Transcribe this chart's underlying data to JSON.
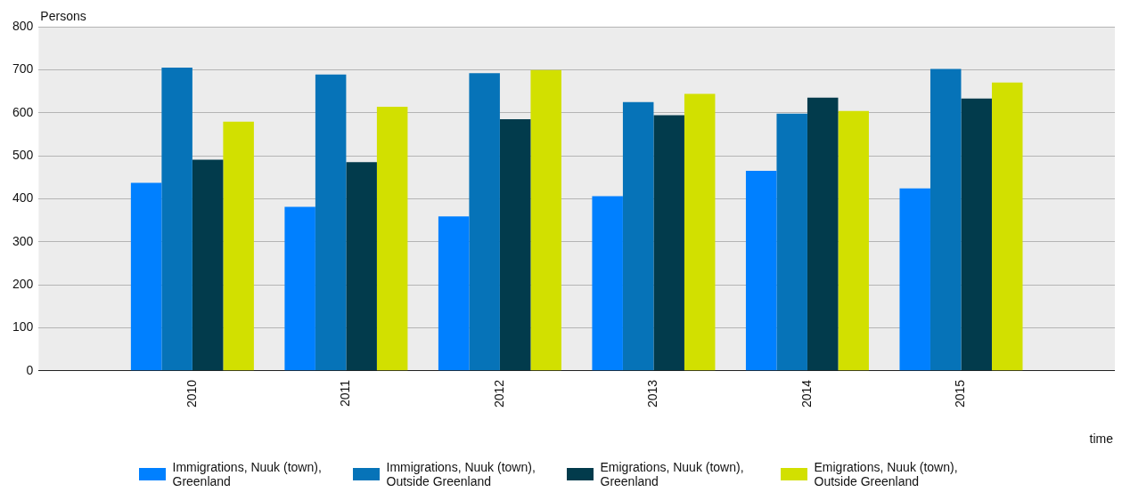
{
  "chart_data": {
    "type": "bar",
    "xlabel": "time",
    "ylabel": "Persons",
    "categories": [
      "2010",
      "2011",
      "2012",
      "2013",
      "2014",
      "2015"
    ],
    "series": [
      {
        "name": "Immigrations, Nuuk (town), Greenland",
        "color": "#0080ff",
        "values": [
          437,
          381,
          359,
          406,
          465,
          424
        ]
      },
      {
        "name": "Immigrations, Nuuk (town), Outside Greenland",
        "color": "#0673b8",
        "values": [
          705,
          689,
          692,
          625,
          598,
          702
        ]
      },
      {
        "name": "Emigrations, Nuuk (town), Greenland",
        "color": "#023b4c",
        "values": [
          491,
          485,
          585,
          594,
          635,
          633
        ]
      },
      {
        "name": "Emigrations, Nuuk (town), Outside Greenland",
        "color": "#d2e000",
        "values": [
          579,
          614,
          699,
          644,
          604,
          670
        ]
      }
    ],
    "ylim": [
      0,
      800
    ],
    "yticks": [
      0,
      100,
      200,
      300,
      400,
      500,
      600,
      700,
      800
    ],
    "grid": "y",
    "legend": "bottom"
  }
}
